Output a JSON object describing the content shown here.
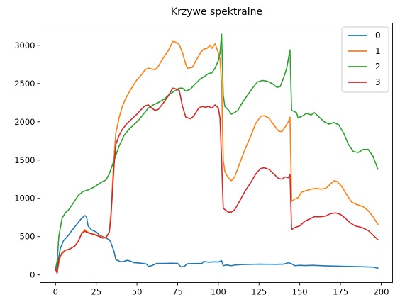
{
  "chart_data": {
    "type": "line",
    "title": "Krzywe spektralne",
    "xlabel": "",
    "ylabel": "",
    "xlim": [
      -9.5,
      207
    ],
    "ylim": [
      -100,
      3290
    ],
    "xticks": [
      0,
      25,
      50,
      75,
      100,
      125,
      150,
      175,
      200
    ],
    "yticks": [
      0,
      500,
      1000,
      1500,
      2000,
      2500,
      3000
    ],
    "grid": false,
    "legend": "top-right",
    "series": [
      {
        "name": "0",
        "color": "#1f77b4",
        "points": [
          [
            0,
            60
          ],
          [
            1,
            120
          ],
          [
            3,
            350
          ],
          [
            5,
            450
          ],
          [
            8,
            520
          ],
          [
            10,
            580
          ],
          [
            13,
            660
          ],
          [
            16,
            740
          ],
          [
            18,
            775
          ],
          [
            19,
            760
          ],
          [
            20,
            640
          ],
          [
            22,
            590
          ],
          [
            25,
            560
          ],
          [
            27,
            520
          ],
          [
            30,
            490
          ],
          [
            33,
            460
          ],
          [
            34,
            420
          ],
          [
            36,
            300
          ],
          [
            37,
            200
          ],
          [
            40,
            170
          ],
          [
            42,
            175
          ],
          [
            44,
            190
          ],
          [
            46,
            180
          ],
          [
            48,
            160
          ],
          [
            51,
            155
          ],
          [
            54,
            148
          ],
          [
            56,
            140
          ],
          [
            57,
            110
          ],
          [
            59,
            120
          ],
          [
            62,
            148
          ],
          [
            67,
            150
          ],
          [
            71,
            152
          ],
          [
            75,
            150
          ],
          [
            77,
            105
          ],
          [
            79,
            110
          ],
          [
            81,
            145
          ],
          [
            86,
            148
          ],
          [
            90,
            150
          ],
          [
            91,
            175
          ],
          [
            94,
            165
          ],
          [
            97,
            170
          ],
          [
            100,
            168
          ],
          [
            102,
            185
          ],
          [
            103,
            120
          ],
          [
            105,
            130
          ],
          [
            108,
            120
          ],
          [
            110,
            128
          ],
          [
            115,
            135
          ],
          [
            125,
            140
          ],
          [
            135,
            138
          ],
          [
            140,
            140
          ],
          [
            143,
            158
          ],
          [
            145,
            145
          ],
          [
            147,
            120
          ],
          [
            150,
            125
          ],
          [
            153,
            122
          ],
          [
            158,
            125
          ],
          [
            165,
            118
          ],
          [
            175,
            112
          ],
          [
            185,
            108
          ],
          [
            195,
            102
          ],
          [
            198,
            88
          ]
        ]
      },
      {
        "name": "1",
        "color": "#ff7f0e",
        "points": [
          [
            0,
            90
          ],
          [
            1,
            50
          ],
          [
            3,
            250
          ],
          [
            6,
            320
          ],
          [
            9,
            340
          ],
          [
            12,
            380
          ],
          [
            14,
            440
          ],
          [
            16,
            540
          ],
          [
            18,
            590
          ],
          [
            19,
            570
          ],
          [
            21,
            545
          ],
          [
            24,
            530
          ],
          [
            27,
            510
          ],
          [
            29,
            490
          ],
          [
            31,
            480
          ],
          [
            33,
            560
          ],
          [
            34,
            800
          ],
          [
            35,
            1200
          ],
          [
            36,
            1550
          ],
          [
            37,
            1850
          ],
          [
            39,
            2050
          ],
          [
            41,
            2200
          ],
          [
            43,
            2300
          ],
          [
            45,
            2380
          ],
          [
            47,
            2450
          ],
          [
            50,
            2550
          ],
          [
            53,
            2620
          ],
          [
            55,
            2680
          ],
          [
            57,
            2700
          ],
          [
            59,
            2690
          ],
          [
            61,
            2680
          ],
          [
            63,
            2720
          ],
          [
            66,
            2830
          ],
          [
            69,
            2920
          ],
          [
            72,
            3050
          ],
          [
            74,
            3040
          ],
          [
            76,
            3010
          ],
          [
            78,
            2900
          ],
          [
            80,
            2750
          ],
          [
            81,
            2700
          ],
          [
            84,
            2710
          ],
          [
            86,
            2790
          ],
          [
            89,
            2900
          ],
          [
            91,
            2950
          ],
          [
            93,
            2960
          ],
          [
            95,
            3000
          ],
          [
            96,
            2960
          ],
          [
            98,
            3020
          ],
          [
            100,
            2900
          ],
          [
            101,
            2820
          ],
          [
            102,
            2500
          ],
          [
            103,
            1500
          ],
          [
            104,
            1350
          ],
          [
            106,
            1270
          ],
          [
            108,
            1230
          ],
          [
            110,
            1280
          ],
          [
            113,
            1450
          ],
          [
            116,
            1620
          ],
          [
            120,
            1820
          ],
          [
            123,
            1980
          ],
          [
            126,
            2070
          ],
          [
            128,
            2080
          ],
          [
            131,
            2050
          ],
          [
            134,
            1960
          ],
          [
            137,
            1880
          ],
          [
            139,
            1870
          ],
          [
            141,
            1930
          ],
          [
            143,
            2000
          ],
          [
            144,
            2060
          ],
          [
            145,
            960
          ],
          [
            147,
            990
          ],
          [
            149,
            1010
          ],
          [
            151,
            1080
          ],
          [
            154,
            1100
          ],
          [
            157,
            1120
          ],
          [
            160,
            1130
          ],
          [
            163,
            1120
          ],
          [
            166,
            1130
          ],
          [
            169,
            1190
          ],
          [
            171,
            1230
          ],
          [
            173,
            1220
          ],
          [
            176,
            1150
          ],
          [
            179,
            1040
          ],
          [
            182,
            950
          ],
          [
            185,
            920
          ],
          [
            189,
            890
          ],
          [
            192,
            840
          ],
          [
            195,
            760
          ],
          [
            198,
            660
          ]
        ]
      },
      {
        "name": "2",
        "color": "#2ca02c",
        "points": [
          [
            0,
            80
          ],
          [
            1,
            180
          ],
          [
            2,
            500
          ],
          [
            4,
            740
          ],
          [
            6,
            810
          ],
          [
            8,
            850
          ],
          [
            11,
            940
          ],
          [
            14,
            1040
          ],
          [
            17,
            1090
          ],
          [
            20,
            1110
          ],
          [
            23,
            1140
          ],
          [
            26,
            1180
          ],
          [
            29,
            1220
          ],
          [
            31,
            1240
          ],
          [
            33,
            1320
          ],
          [
            36,
            1500
          ],
          [
            39,
            1680
          ],
          [
            42,
            1820
          ],
          [
            45,
            1900
          ],
          [
            48,
            1960
          ],
          [
            51,
            2020
          ],
          [
            54,
            2100
          ],
          [
            57,
            2180
          ],
          [
            60,
            2220
          ],
          [
            63,
            2250
          ],
          [
            67,
            2300
          ],
          [
            70,
            2360
          ],
          [
            73,
            2400
          ],
          [
            76,
            2440
          ],
          [
            78,
            2440
          ],
          [
            80,
            2400
          ],
          [
            83,
            2430
          ],
          [
            86,
            2500
          ],
          [
            89,
            2560
          ],
          [
            92,
            2600
          ],
          [
            94,
            2630
          ],
          [
            96,
            2640
          ],
          [
            98,
            2700
          ],
          [
            100,
            2800
          ],
          [
            101,
            2900
          ],
          [
            102,
            3145
          ],
          [
            103,
            2350
          ],
          [
            104,
            2200
          ],
          [
            106,
            2160
          ],
          [
            108,
            2100
          ],
          [
            110,
            2120
          ],
          [
            112,
            2150
          ],
          [
            115,
            2260
          ],
          [
            118,
            2350
          ],
          [
            121,
            2440
          ],
          [
            124,
            2520
          ],
          [
            127,
            2540
          ],
          [
            130,
            2530
          ],
          [
            133,
            2500
          ],
          [
            136,
            2450
          ],
          [
            138,
            2460
          ],
          [
            140,
            2570
          ],
          [
            142,
            2700
          ],
          [
            144,
            2940
          ],
          [
            145,
            2150
          ],
          [
            148,
            2120
          ],
          [
            149,
            2050
          ],
          [
            152,
            2080
          ],
          [
            154,
            2110
          ],
          [
            157,
            2090
          ],
          [
            159,
            2120
          ],
          [
            162,
            2060
          ],
          [
            165,
            2000
          ],
          [
            168,
            1970
          ],
          [
            171,
            1990
          ],
          [
            174,
            1960
          ],
          [
            177,
            1850
          ],
          [
            180,
            1700
          ],
          [
            183,
            1610
          ],
          [
            186,
            1600
          ],
          [
            189,
            1640
          ],
          [
            192,
            1640
          ],
          [
            195,
            1550
          ],
          [
            198,
            1380
          ]
        ]
      },
      {
        "name": "3",
        "color": "#d62728",
        "points": [
          [
            0,
            80
          ],
          [
            1,
            20
          ],
          [
            2,
            200
          ],
          [
            4,
            290
          ],
          [
            6,
            320
          ],
          [
            9,
            340
          ],
          [
            12,
            380
          ],
          [
            14,
            440
          ],
          [
            16,
            540
          ],
          [
            18,
            570
          ],
          [
            20,
            550
          ],
          [
            23,
            530
          ],
          [
            26,
            510
          ],
          [
            29,
            480
          ],
          [
            31,
            490
          ],
          [
            33,
            560
          ],
          [
            34,
            750
          ],
          [
            35,
            1100
          ],
          [
            36,
            1450
          ],
          [
            37,
            1700
          ],
          [
            39,
            1820
          ],
          [
            41,
            1900
          ],
          [
            44,
            1980
          ],
          [
            47,
            2040
          ],
          [
            50,
            2100
          ],
          [
            53,
            2170
          ],
          [
            55,
            2210
          ],
          [
            57,
            2220
          ],
          [
            59,
            2180
          ],
          [
            61,
            2150
          ],
          [
            63,
            2160
          ],
          [
            66,
            2240
          ],
          [
            69,
            2330
          ],
          [
            72,
            2440
          ],
          [
            74,
            2430
          ],
          [
            76,
            2410
          ],
          [
            78,
            2200
          ],
          [
            80,
            2060
          ],
          [
            83,
            2040
          ],
          [
            85,
            2080
          ],
          [
            88,
            2180
          ],
          [
            90,
            2200
          ],
          [
            92,
            2190
          ],
          [
            94,
            2200
          ],
          [
            96,
            2180
          ],
          [
            98,
            2220
          ],
          [
            100,
            2180
          ],
          [
            101,
            2050
          ],
          [
            102,
            1500
          ],
          [
            103,
            870
          ],
          [
            106,
            820
          ],
          [
            108,
            820
          ],
          [
            110,
            850
          ],
          [
            113,
            960
          ],
          [
            116,
            1080
          ],
          [
            120,
            1210
          ],
          [
            123,
            1320
          ],
          [
            126,
            1390
          ],
          [
            128,
            1400
          ],
          [
            131,
            1380
          ],
          [
            134,
            1320
          ],
          [
            137,
            1260
          ],
          [
            139,
            1250
          ],
          [
            141,
            1280
          ],
          [
            143,
            1270
          ],
          [
            144,
            1310
          ],
          [
            145,
            590
          ],
          [
            147,
            620
          ],
          [
            150,
            640
          ],
          [
            153,
            700
          ],
          [
            156,
            730
          ],
          [
            159,
            760
          ],
          [
            163,
            760
          ],
          [
            166,
            770
          ],
          [
            169,
            800
          ],
          [
            172,
            810
          ],
          [
            175,
            790
          ],
          [
            178,
            740
          ],
          [
            181,
            680
          ],
          [
            184,
            640
          ],
          [
            188,
            620
          ],
          [
            192,
            580
          ],
          [
            195,
            520
          ],
          [
            198,
            460
          ]
        ]
      }
    ]
  }
}
